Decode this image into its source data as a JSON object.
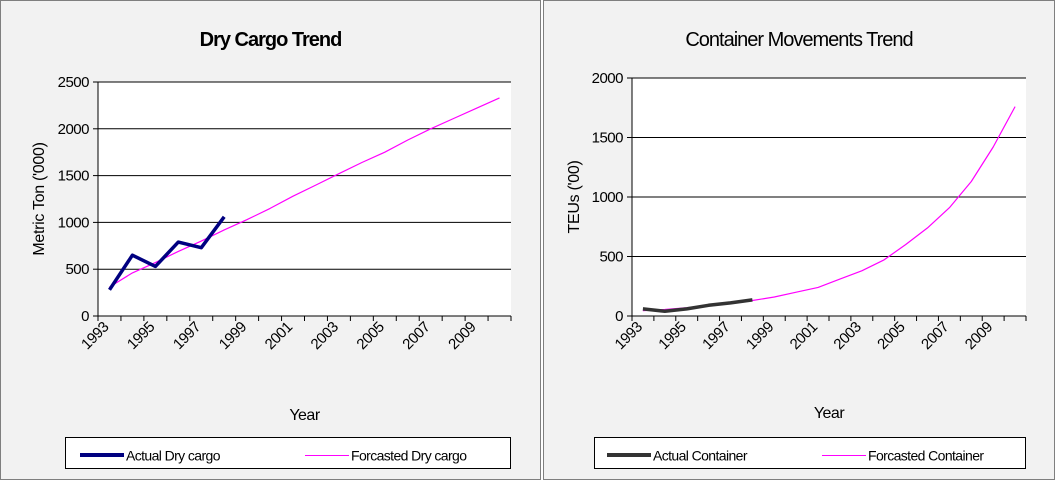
{
  "chart_data": [
    {
      "type": "line",
      "title": "Dry Cargo Trend",
      "xlabel": "Year",
      "ylabel": "Metric Ton ('000)",
      "ylim": [
        0,
        2500
      ],
      "yticks": [
        0,
        500,
        1000,
        1500,
        2000,
        2500
      ],
      "categories": [
        "1993",
        "1994",
        "1995",
        "1996",
        "1997",
        "1998",
        "1999",
        "2000",
        "2001",
        "2002",
        "2003",
        "2004",
        "2005",
        "2006",
        "2007",
        "2008",
        "2009",
        "2010"
      ],
      "tick_labels": [
        "1993",
        "1995",
        "1997",
        "1999",
        "2001",
        "2003",
        "2005",
        "2007",
        "2009"
      ],
      "grid": true,
      "legend": "bottom",
      "series": [
        {
          "name": "Actual Dry cargo",
          "color": "#000080",
          "values": [
            280,
            650,
            530,
            790,
            730,
            1060,
            null,
            null,
            null,
            null,
            null,
            null,
            null,
            null,
            null,
            null,
            null,
            null
          ]
        },
        {
          "name": "Forcasted Dry cargo",
          "color": "#ff00ff",
          "values": [
            310,
            460,
            570,
            690,
            800,
            920,
            1030,
            1150,
            1280,
            1400,
            1520,
            1640,
            1750,
            1880,
            2000,
            2110,
            2220,
            2330
          ]
        }
      ]
    },
    {
      "type": "line",
      "title": "Container Movements Trend",
      "xlabel": "Year",
      "ylabel": "TEUs ('00)",
      "ylim": [
        0,
        2000
      ],
      "yticks": [
        0,
        500,
        1000,
        1500,
        2000
      ],
      "categories": [
        "1993",
        "1994",
        "1995",
        "1996",
        "1997",
        "1998",
        "1999",
        "2000",
        "2001",
        "2002",
        "2003",
        "2004",
        "2005",
        "2006",
        "2007",
        "2008",
        "2009",
        "2010"
      ],
      "tick_labels": [
        "1993",
        "1995",
        "1997",
        "1999",
        "2001",
        "2003",
        "2005",
        "2007",
        "2009"
      ],
      "grid": true,
      "legend": "bottom",
      "series": [
        {
          "name": "Actual Container",
          "color": "#333333",
          "values": [
            60,
            40,
            60,
            90,
            110,
            135,
            null,
            null,
            null,
            null,
            null,
            null,
            null,
            null,
            null,
            null,
            null,
            null
          ]
        },
        {
          "name": "Forcasted Container",
          "color": "#ff00ff",
          "values": [
            45,
            55,
            70,
            90,
            110,
            130,
            160,
            200,
            240,
            310,
            380,
            470,
            600,
            740,
            910,
            1130,
            1420,
            1760
          ]
        }
      ]
    }
  ]
}
